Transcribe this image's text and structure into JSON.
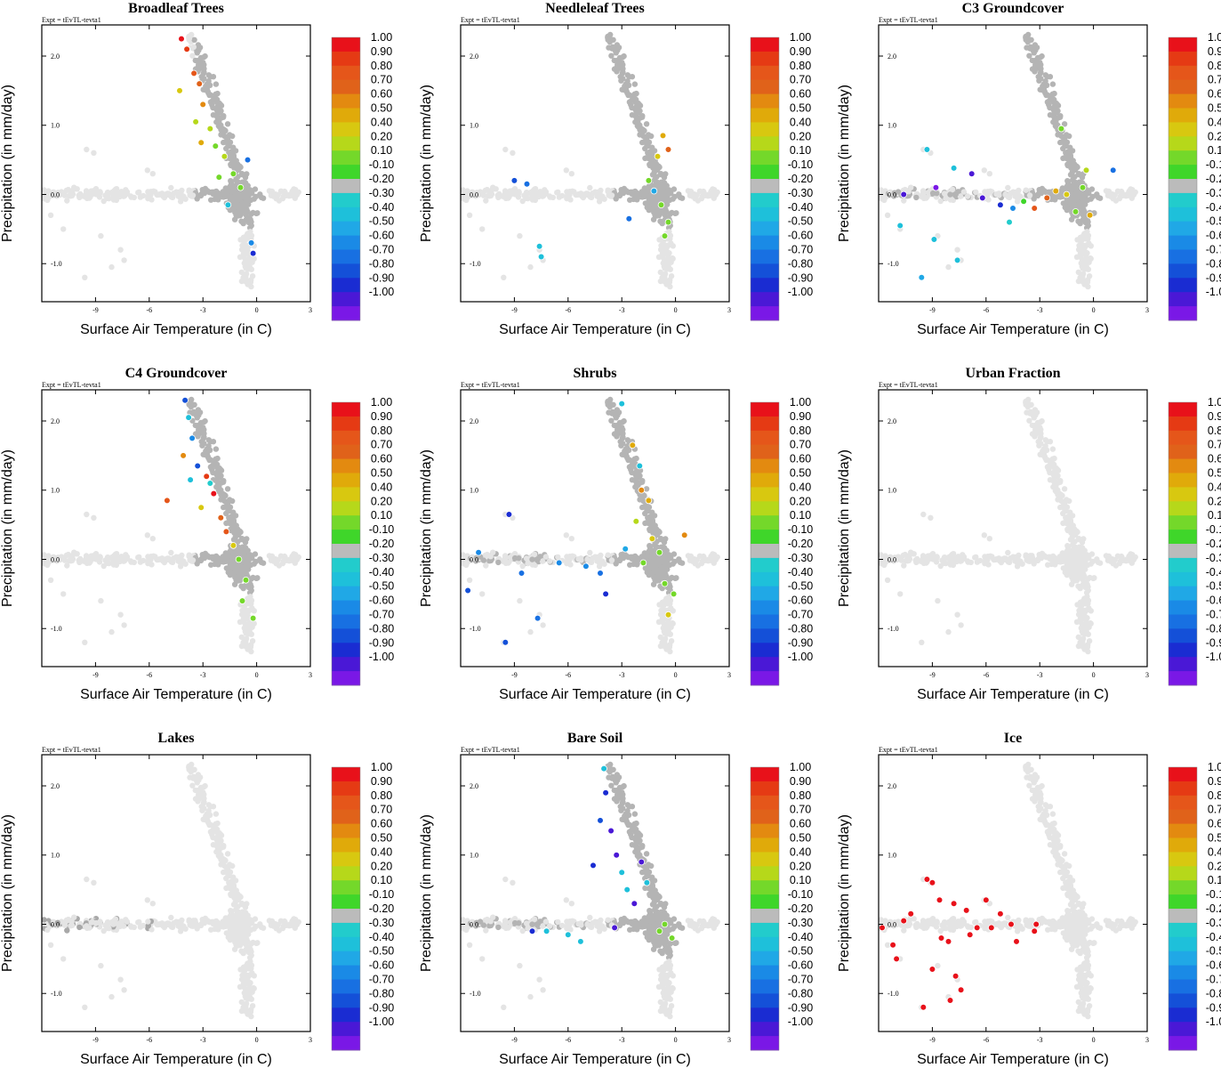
{
  "figure": {
    "expt_label": "Expt = tEvTL-tevta1",
    "xlabel": "Surface Air Temperature (in C)",
    "ylabel": "Precipitation (in mm/day)"
  },
  "chart_data": {
    "type": "scatter",
    "xlim": [
      -12,
      3
    ],
    "ylim": [
      -1.55,
      2.45
    ],
    "xticks": [
      -9,
      -6,
      -3,
      0,
      3
    ],
    "xtick_labels": [
      "-9",
      "-6",
      "-3",
      "0",
      "3"
    ],
    "yticks": [
      -1.0,
      0.0,
      1.0,
      2.0
    ],
    "ytick_labels": [
      "-1.0",
      "0.0",
      "1.0",
      "2.0"
    ],
    "colorbar": {
      "labels": [
        "1.00",
        "0.90",
        "0.80",
        "0.70",
        "0.60",
        "0.50",
        "0.40",
        "0.20",
        "0.10",
        "-0.10",
        "-0.20",
        "-0.30",
        "-0.40",
        "-0.50",
        "-0.60",
        "-0.70",
        "-0.80",
        "-0.90",
        "-1.00"
      ],
      "colors": [
        "#e8111a",
        "#e53a14",
        "#e5561a",
        "#e0621a",
        "#e38a10",
        "#e0aa0a",
        "#d8c810",
        "#b6d81a",
        "#74d82a",
        "#3fd62a",
        "#bbbbbb",
        "#22cccc",
        "#1ec0da",
        "#20a8e6",
        "#1a8ae6",
        "#1870e2",
        "#1450d8",
        "#1a2cd2",
        "#4a18d6",
        "#7a18e6"
      ]
    },
    "panels": [
      {
        "title": "Broadleaf Trees",
        "mode": "broadleaf",
        "series": [
          {
            "name": "colored",
            "points": [
              [
                -4.2,
                2.25,
                1.0
              ],
              [
                -3.9,
                2.1,
                0.85
              ],
              [
                -3.5,
                1.75,
                0.8
              ],
              [
                -3.2,
                1.6,
                0.7
              ],
              [
                -4.3,
                1.5,
                0.4
              ],
              [
                -3.0,
                1.3,
                0.6
              ],
              [
                -3.4,
                1.05,
                0.3
              ],
              [
                -2.6,
                0.95,
                0.3
              ],
              [
                -3.1,
                0.75,
                0.5
              ],
              [
                -2.3,
                0.7,
                0.2
              ],
              [
                -1.8,
                0.55,
                0.3
              ],
              [
                -1.3,
                0.3,
                0.2
              ],
              [
                -2.1,
                0.25,
                0.15
              ],
              [
                -0.9,
                0.1,
                0.2
              ],
              [
                -0.5,
                0.5,
                -0.6
              ],
              [
                -1.6,
                -0.15,
                -0.3
              ],
              [
                -0.3,
                -0.7,
                -0.5
              ],
              [
                -0.2,
                -0.85,
                -0.8
              ]
            ]
          }
        ]
      },
      {
        "title": "Needleleaf Trees",
        "mode": "needleleaf",
        "series": [
          {
            "name": "colored",
            "points": [
              [
                -0.7,
                0.85,
                0.5
              ],
              [
                -0.4,
                0.65,
                0.7
              ],
              [
                -1.0,
                0.55,
                0.4
              ],
              [
                -1.5,
                0.2,
                0.2
              ],
              [
                -0.8,
                -0.15,
                0.2
              ],
              [
                -0.4,
                -0.4,
                0.2
              ],
              [
                -0.6,
                -0.6,
                0.2
              ],
              [
                -2.6,
                -0.35,
                -0.6
              ],
              [
                -1.2,
                0.05,
                -0.4
              ],
              [
                -9.0,
                0.2,
                -0.7
              ],
              [
                -8.3,
                0.15,
                -0.6
              ],
              [
                -7.6,
                -0.75,
                -0.3
              ],
              [
                -7.5,
                -0.9,
                -0.3
              ]
            ]
          }
        ]
      },
      {
        "title": "C3 Groundcover",
        "mode": "c3",
        "series": [
          {
            "name": "colored",
            "points": [
              [
                -9.3,
                0.65,
                -0.3
              ],
              [
                -7.8,
                0.38,
                -0.3
              ],
              [
                -6.8,
                0.3,
                -0.9
              ],
              [
                -10.6,
                0.0,
                -0.9
              ],
              [
                -8.8,
                0.1,
                -0.95
              ],
              [
                -6.2,
                -0.05,
                -0.85
              ],
              [
                -5.2,
                -0.15,
                -0.8
              ],
              [
                -4.5,
                -0.2,
                -0.5
              ],
              [
                -3.9,
                -0.1,
                0.1
              ],
              [
                -3.3,
                -0.2,
                0.8
              ],
              [
                -2.6,
                -0.05,
                0.7
              ],
              [
                -2.1,
                0.05,
                0.5
              ],
              [
                -1.5,
                0.0,
                0.4
              ],
              [
                -1.0,
                -0.25,
                0.2
              ],
              [
                -0.4,
                0.35,
                0.3
              ],
              [
                -1.8,
                0.95,
                0.2
              ],
              [
                1.1,
                0.35,
                -0.6
              ],
              [
                -0.6,
                0.1,
                0.2
              ],
              [
                -8.9,
                -0.65,
                -0.3
              ],
              [
                -7.6,
                -0.95,
                -0.3
              ],
              [
                -9.6,
                -1.2,
                -0.4
              ],
              [
                -10.8,
                -0.45,
                -0.3
              ],
              [
                -4.7,
                -0.4,
                -0.2
              ],
              [
                -0.2,
                -0.3,
                0.5
              ]
            ]
          }
        ]
      },
      {
        "title": "C4 Groundcover",
        "mode": "c4",
        "series": [
          {
            "name": "colored",
            "points": [
              [
                -4.0,
                2.3,
                -0.7
              ],
              [
                -3.8,
                2.05,
                -0.3
              ],
              [
                -3.6,
                1.75,
                -0.5
              ],
              [
                -4.1,
                1.5,
                0.6
              ],
              [
                -3.3,
                1.35,
                -0.7
              ],
              [
                -2.8,
                1.2,
                0.9
              ],
              [
                -2.4,
                0.95,
                1.0
              ],
              [
                -3.1,
                0.75,
                0.4
              ],
              [
                -5.0,
                0.85,
                0.8
              ],
              [
                -2.0,
                0.6,
                0.7
              ],
              [
                -1.7,
                0.4,
                0.8
              ],
              [
                -1.3,
                0.2,
                0.4
              ],
              [
                -1.0,
                0.0,
                0.2
              ],
              [
                -0.6,
                -0.3,
                0.2
              ],
              [
                -0.2,
                -0.85,
                0.2
              ],
              [
                -0.8,
                -0.6,
                0.2
              ],
              [
                -2.6,
                1.1,
                -0.2
              ],
              [
                -3.7,
                1.15,
                -0.3
              ]
            ]
          }
        ]
      },
      {
        "title": "Shrubs",
        "mode": "shrubs",
        "series": [
          {
            "name": "colored",
            "points": [
              [
                -3.0,
                2.25,
                -0.3
              ],
              [
                -2.4,
                1.65,
                0.5
              ],
              [
                -2.0,
                1.35,
                -0.3
              ],
              [
                -1.9,
                1.0,
                0.6
              ],
              [
                -1.5,
                0.85,
                0.5
              ],
              [
                -2.2,
                0.55,
                0.3
              ],
              [
                -1.3,
                0.3,
                0.4
              ],
              [
                -0.9,
                0.1,
                0.2
              ],
              [
                -1.8,
                -0.05,
                0.2
              ],
              [
                -0.6,
                -0.35,
                0.2
              ],
              [
                0.5,
                0.35,
                0.6
              ],
              [
                -0.1,
                -0.5,
                0.2
              ],
              [
                -0.4,
                -0.8,
                0.4
              ],
              [
                -5.0,
                -0.1,
                -0.5
              ],
              [
                -4.2,
                -0.2,
                -0.6
              ],
              [
                -6.5,
                -0.05,
                -0.5
              ],
              [
                -9.3,
                0.65,
                -0.8
              ],
              [
                -11.0,
                0.1,
                -0.5
              ],
              [
                -8.6,
                -0.2,
                -0.6
              ],
              [
                -7.7,
                -0.85,
                -0.6
              ],
              [
                -9.5,
                -1.2,
                -0.7
              ],
              [
                -11.6,
                -0.45,
                -0.7
              ],
              [
                -3.9,
                -0.5,
                -0.8
              ],
              [
                -2.8,
                0.15,
                -0.4
              ]
            ]
          }
        ]
      },
      {
        "title": "Urban Fraction",
        "mode": "urban",
        "series": [
          {
            "name": "colored",
            "points": []
          }
        ]
      },
      {
        "title": "Lakes",
        "mode": "lakes",
        "series": [
          {
            "name": "colored",
            "points": []
          }
        ]
      },
      {
        "title": "Bare Soil",
        "mode": "baresoil",
        "series": [
          {
            "name": "colored",
            "points": [
              [
                -4.0,
                2.25,
                -0.3
              ],
              [
                -3.9,
                1.9,
                -0.8
              ],
              [
                -4.2,
                1.5,
                -0.7
              ],
              [
                -3.6,
                1.35,
                -0.9
              ],
              [
                -3.3,
                1.0,
                -0.9
              ],
              [
                -3.0,
                0.75,
                -0.3
              ],
              [
                -2.7,
                0.5,
                -0.3
              ],
              [
                -2.3,
                0.3,
                -0.9
              ],
              [
                -4.6,
                0.85,
                -0.8
              ],
              [
                -1.9,
                0.9,
                -0.9
              ],
              [
                -1.6,
                0.6,
                -0.3
              ],
              [
                -0.6,
                0.0,
                0.2
              ],
              [
                -0.2,
                -0.2,
                0.2
              ],
              [
                -0.9,
                -0.1,
                0.2
              ],
              [
                -6.0,
                -0.15,
                -0.3
              ],
              [
                -5.3,
                -0.25,
                -0.3
              ],
              [
                -7.2,
                -0.1,
                -0.3
              ],
              [
                -3.4,
                -0.05,
                -0.9
              ],
              [
                -8.0,
                -0.1,
                -0.8
              ]
            ]
          }
        ]
      },
      {
        "title": "Ice",
        "mode": "ice",
        "series": [
          {
            "name": "colored",
            "points": [
              [
                -9.3,
                0.65,
                1.0
              ],
              [
                -9.0,
                0.6,
                1.0
              ],
              [
                -10.6,
                0.05,
                1.0
              ],
              [
                -11.8,
                -0.05,
                1.0
              ],
              [
                -10.2,
                0.15,
                1.0
              ],
              [
                -8.6,
                0.35,
                1.0
              ],
              [
                -7.8,
                0.3,
                1.0
              ],
              [
                -7.1,
                0.2,
                1.0
              ],
              [
                -6.0,
                0.35,
                1.0
              ],
              [
                -5.2,
                0.15,
                1.0
              ],
              [
                -4.6,
                0.0,
                1.0
              ],
              [
                -3.2,
                0.0,
                1.0
              ],
              [
                -3.3,
                -0.1,
                1.0
              ],
              [
                -4.3,
                -0.25,
                1.0
              ],
              [
                -6.5,
                -0.05,
                1.0
              ],
              [
                -8.1,
                -0.25,
                1.0
              ],
              [
                -11.2,
                -0.3,
                1.0
              ],
              [
                -11.0,
                -0.5,
                1.0
              ],
              [
                -9.0,
                -0.65,
                1.0
              ],
              [
                -7.7,
                -0.75,
                1.0
              ],
              [
                -7.4,
                -0.95,
                1.0
              ],
              [
                -8.0,
                -1.1,
                1.0
              ],
              [
                -9.5,
                -1.2,
                1.0
              ],
              [
                -8.5,
                -0.2,
                1.0
              ],
              [
                -6.9,
                -0.15,
                1.0
              ],
              [
                -5.7,
                -0.05,
                1.0
              ]
            ]
          }
        ]
      }
    ]
  }
}
